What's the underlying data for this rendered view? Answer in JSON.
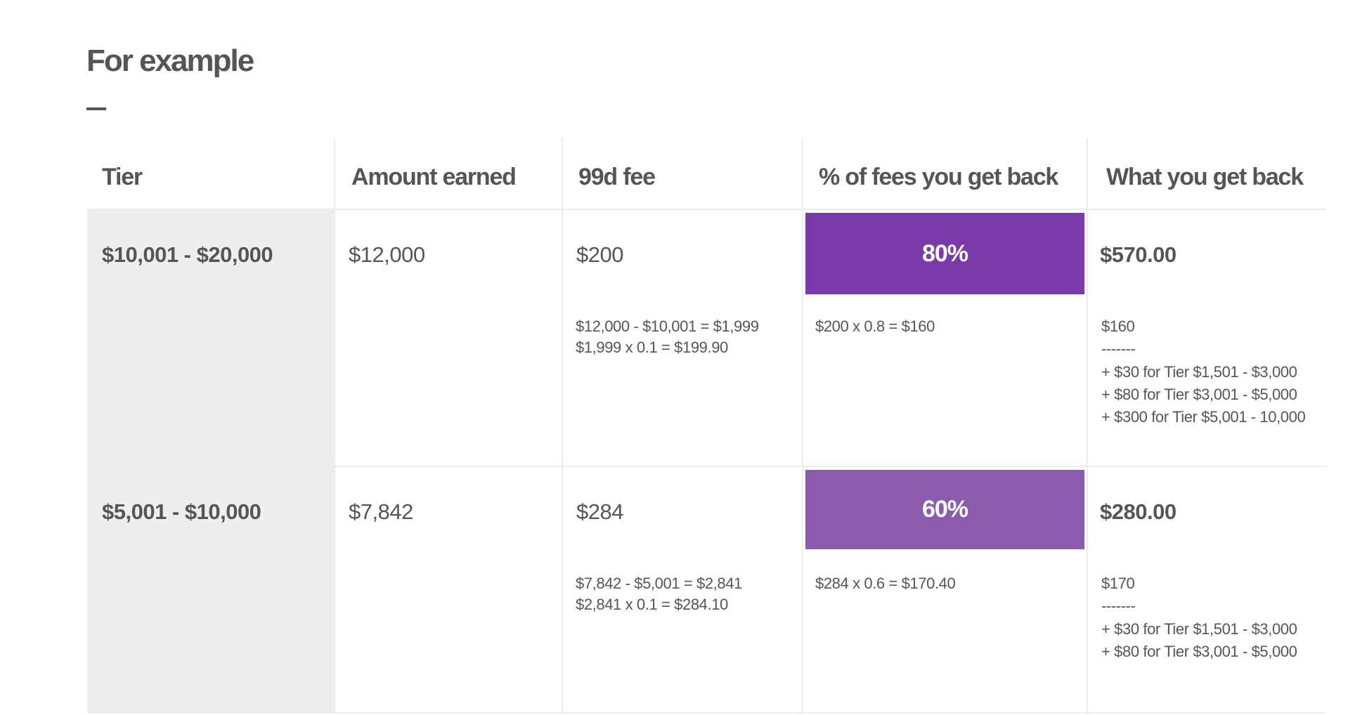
{
  "header": {
    "title": "For example"
  },
  "table": {
    "headers": [
      "Tier",
      "Amount earned",
      "99d fee",
      "% of fees you get back",
      "What you get back"
    ],
    "rows": [
      {
        "tier": "$10,001 - $20,000",
        "amount": "$12,000",
        "fee": "$200",
        "fee_calc": [
          "$12,000 - $10,001 = $1,999",
          "$1,999 x 0.1 = $199.90"
        ],
        "percent": "80%",
        "percent_calc": "$200 x 0.8 = $160",
        "get_back": "$570.00",
        "get_back_calc": [
          "$160",
          "-------",
          "+ $30 for Tier $1,501 - $3,000",
          "+ $80 for Tier $3,001 - $5,000",
          "+ $300 for Tier $5,001 - 10,000"
        ]
      },
      {
        "tier": "$5,001 - $10,000",
        "amount": "$7,842",
        "fee": "$284",
        "fee_calc": [
          "$7,842 - $5,001 = $2,841",
          "$2,841 x 0.1 = $284.10"
        ],
        "percent": "60%",
        "percent_calc": "$284 x 0.6 = $170.40",
        "get_back": "$280.00",
        "get_back_calc": [
          "$170",
          "-------",
          "+ $30 for Tier $1,501 - $3,000",
          "+ $80 for Tier $3,001 - $5,000"
        ]
      }
    ]
  }
}
